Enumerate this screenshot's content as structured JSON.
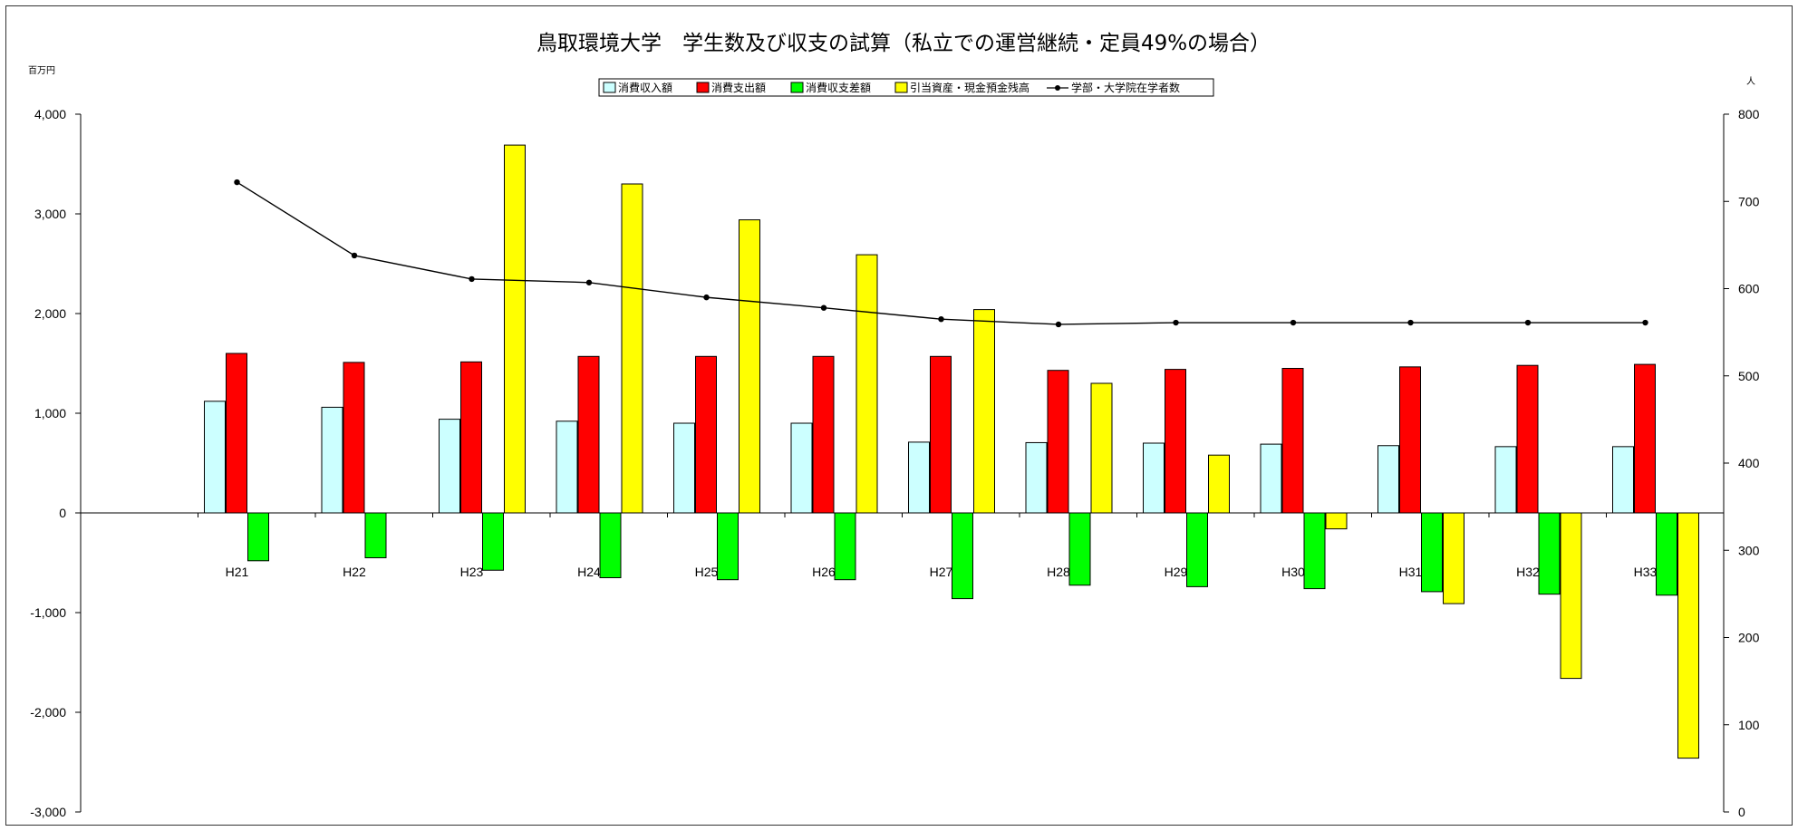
{
  "chart_data": {
    "type": "bar",
    "title": "鳥取環境大学　学生数及び収支の試算（私立での運営継続・定員49%の場合）",
    "y_left_unit": "百万円",
    "y_right_unit": "人",
    "ylim": [
      -3000,
      4000
    ],
    "y2lim": [
      0,
      800
    ],
    "y_ticks": [
      "4,000",
      "3,000",
      "2,000",
      "1,000",
      "0",
      "-1,000",
      "-2,000",
      "-3,000"
    ],
    "y2_ticks": [
      "800",
      "700",
      "600",
      "500",
      "400",
      "300",
      "200",
      "100",
      "0"
    ],
    "categories": [
      "H21",
      "H22",
      "H23",
      "H24",
      "H25",
      "H26",
      "H27",
      "H28",
      "H29",
      "H30",
      "H31",
      "H32",
      "H33"
    ],
    "legend_position": "top",
    "series": [
      {
        "name": "消費収入額",
        "color": "#ccffff",
        "values": [
          1120,
          1060,
          940,
          920,
          900,
          900,
          710,
          705,
          700,
          690,
          675,
          665,
          665
        ]
      },
      {
        "name": "消費支出額",
        "color": "#ff0000",
        "values": [
          1600,
          1510,
          1515,
          1570,
          1570,
          1570,
          1570,
          1430,
          1440,
          1450,
          1465,
          1480,
          1490
        ]
      },
      {
        "name": "消費収支差額",
        "color": "#00ff00",
        "values": [
          -480,
          -450,
          -575,
          -650,
          -670,
          -670,
          -860,
          -725,
          -740,
          -760,
          -790,
          -815,
          -825
        ]
      },
      {
        "name": "引当資産・現金預金残高",
        "color": "#ffff00",
        "values": [
          null,
          null,
          3690,
          3300,
          2940,
          2590,
          2040,
          1300,
          580,
          -160,
          -910,
          -1660,
          -2460
        ]
      },
      {
        "name": "学部・大学院在学者数",
        "type": "line",
        "axis": "right",
        "color": "#000000",
        "values": [
          722,
          638,
          611,
          607,
          590,
          578,
          565,
          559,
          561,
          561,
          561,
          561,
          561
        ]
      }
    ]
  }
}
